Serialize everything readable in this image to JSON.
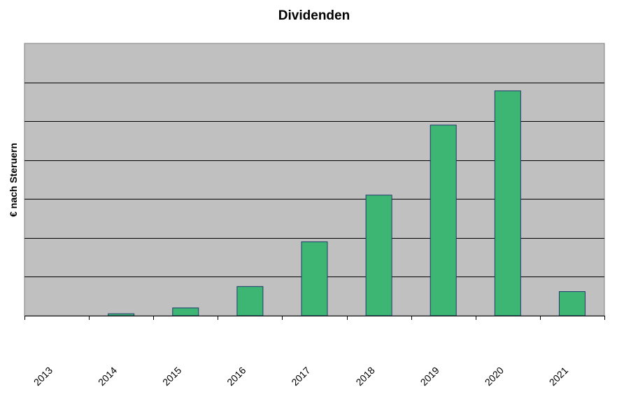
{
  "chart_data": {
    "type": "bar",
    "title": "Dividenden",
    "xlabel": "",
    "ylabel": "€ nach Steruern",
    "categories": [
      "2013",
      "2014",
      "2015",
      "2016",
      "2017",
      "2018",
      "2019",
      "2020",
      "2021"
    ],
    "values": [
      0,
      0.5,
      2,
      7.5,
      19,
      31,
      49,
      57.8,
      6.2
    ],
    "ylim": [
      0,
      70
    ],
    "y_tick_labels_shown": false,
    "grid": true,
    "legend": "none",
    "colors": {
      "bar_fill": "#3db573",
      "bar_stroke": "#1f3a6b",
      "plot_background": "#c0c0c0",
      "gridline": "#000000"
    }
  }
}
